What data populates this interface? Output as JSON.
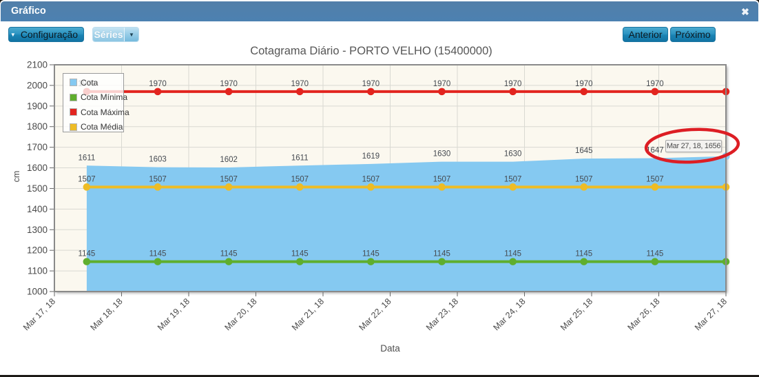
{
  "window": {
    "title": "Gráfico"
  },
  "icons": {
    "close": "✖",
    "caret_down": "▼"
  },
  "toolbar": {
    "configuracao_label": "Configuração",
    "series_label": "Séries",
    "anterior_label": "Anterior",
    "proximo_label": "Próximo"
  },
  "chart_data": {
    "type": "area",
    "title": "Cotagrama Diário - PORTO VELHO (15400000)",
    "xlabel": "Data",
    "ylabel": "cm",
    "ylim": [
      1000,
      2100
    ],
    "y_tick_step": 100,
    "x_tick_labels": [
      "Mar 17, 18",
      "Mar 18, 18",
      "Mar 19, 18",
      "Mar 20, 18",
      "Mar 21, 18",
      "Mar 22, 18",
      "Mar 23, 18",
      "Mar 24, 18",
      "Mar 25, 18",
      "Mar 26, 18",
      "Mar 27, 18"
    ],
    "grid": true,
    "legend_position": "top-left-inside",
    "plot_background": "#fbf8ef",
    "series": [
      {
        "name": "Cota",
        "type": "area",
        "color": "#85c9f1",
        "values": [
          1611,
          1603,
          1602,
          1611,
          1619,
          1630,
          1630,
          1645,
          1647,
          1656
        ],
        "labels_visible": 9
      },
      {
        "name": "Cota Mínima",
        "type": "line",
        "color": "#5fae2e",
        "values": [
          1145,
          1145,
          1145,
          1145,
          1145,
          1145,
          1145,
          1145,
          1145,
          1145
        ],
        "labels_visible": 9
      },
      {
        "name": "Cota Máxima",
        "type": "line",
        "color": "#e2251f",
        "values": [
          1970,
          1970,
          1970,
          1970,
          1970,
          1970,
          1970,
          1970,
          1970,
          1970
        ],
        "labels_visible": 9
      },
      {
        "name": "Cota Média",
        "type": "line",
        "color": "#eebc25",
        "values": [
          1507,
          1507,
          1507,
          1507,
          1507,
          1507,
          1507,
          1507,
          1507,
          1507
        ],
        "labels_visible": 9
      }
    ],
    "tooltip": {
      "text": "Mar 27, 18, 1656"
    },
    "annotation": {
      "shape": "ellipse",
      "color": "#dd1e24"
    }
  }
}
